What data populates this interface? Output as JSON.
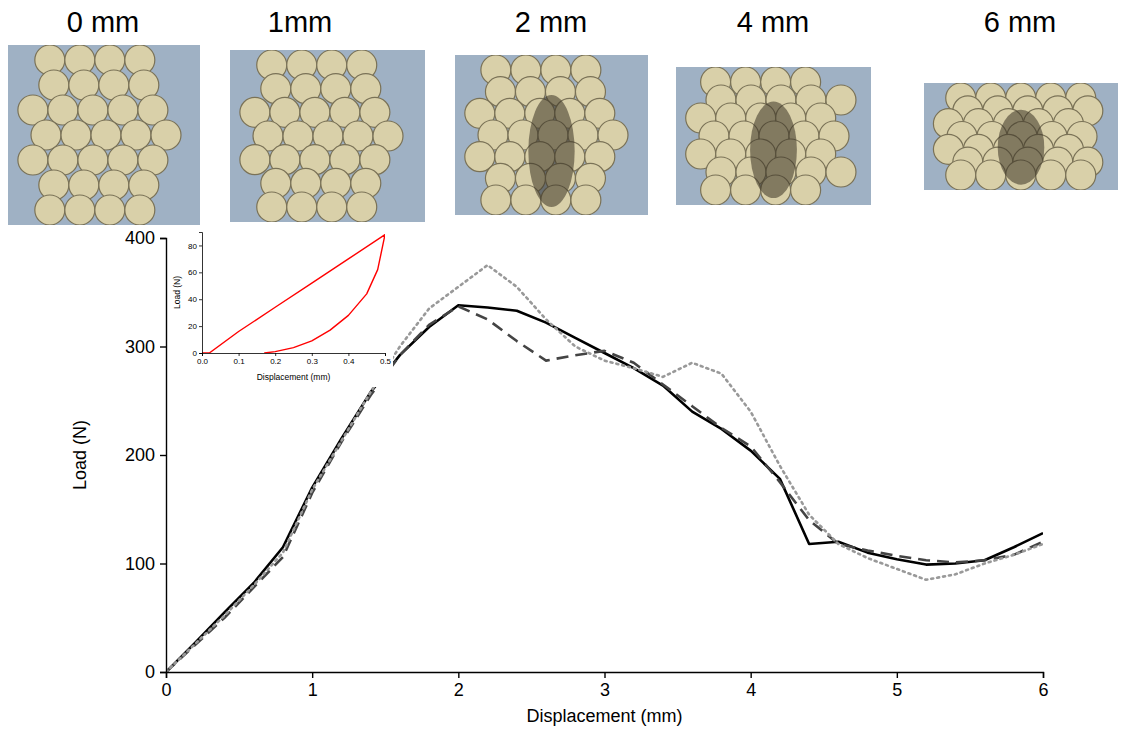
{
  "photos": {
    "labels": [
      "0 mm",
      "1mm",
      "2 mm",
      "4 mm",
      "6 mm"
    ]
  },
  "chart_data": [
    {
      "type": "line",
      "x_label": "Displacement (mm)",
      "y_label": "Load (N)",
      "x": [
        0,
        0.2,
        0.4,
        0.6,
        0.8,
        1.0,
        1.2,
        1.4,
        1.6,
        1.8,
        2.0,
        2.2,
        2.4,
        2.6,
        2.8,
        3.0,
        3.2,
        3.4,
        3.6,
        3.8,
        4.0,
        4.2,
        4.4,
        4.6,
        4.8,
        5.0,
        5.2,
        5.4,
        5.6,
        5.8,
        6.0
      ],
      "series": [
        {
          "color": "#000000",
          "line_style": "solid",
          "values": [
            0,
            27,
            55,
            82,
            115,
            170,
            215,
            258,
            292,
            318,
            338,
            336,
            333,
            322,
            308,
            294,
            280,
            264,
            240,
            224,
            204,
            178,
            118,
            120,
            110,
            104,
            99,
            100,
            103,
            115,
            128
          ]
        },
        {
          "color": "#444444",
          "line_style": "dashed",
          "values": [
            0,
            25,
            50,
            78,
            106,
            165,
            212,
            255,
            292,
            320,
            337,
            325,
            305,
            287,
            292,
            296,
            285,
            265,
            245,
            225,
            208,
            175,
            140,
            118,
            112,
            107,
            103,
            101,
            103,
            108,
            120
          ]
        },
        {
          "color": "#999999",
          "line_style": "dotted",
          "values": [
            0,
            26,
            52,
            80,
            110,
            168,
            213,
            258,
            300,
            335,
            355,
            375,
            355,
            325,
            300,
            287,
            280,
            272,
            285,
            275,
            240,
            190,
            145,
            118,
            105,
            95,
            85,
            90,
            100,
            108,
            118
          ]
        }
      ],
      "xlim": [
        0,
        6
      ],
      "xticks": [
        0,
        1,
        2,
        3,
        4,
        5,
        6
      ],
      "ylim": [
        0,
        400
      ],
      "yticks": [
        0,
        100,
        200,
        300,
        400
      ]
    },
    {
      "type": "line",
      "x_label": "Displacement (mm)",
      "y_label": "Load (N)",
      "series": [
        {
          "color": "#ff0000",
          "line_style": "solid",
          "x": [
            0,
            0.02,
            0.1,
            0.2,
            0.3,
            0.4,
            0.5,
            0.48,
            0.45,
            0.4,
            0.35,
            0.3,
            0.25,
            0.2,
            0.17
          ],
          "values": [
            0,
            0,
            16,
            34,
            52,
            70,
            88,
            62,
            44,
            28,
            17,
            9,
            4,
            1,
            0
          ]
        }
      ],
      "xlim": [
        0,
        0.5
      ],
      "xticks": [
        {
          "value": 0,
          "label": "0.0"
        },
        {
          "value": 0.1,
          "label": "0.1"
        },
        {
          "value": 0.2,
          "label": "0.2"
        },
        {
          "value": 0.3,
          "label": "0.3"
        },
        {
          "value": 0.4,
          "label": "0.4"
        },
        {
          "value": 0.5,
          "label": "0.5"
        }
      ],
      "ylim": [
        0,
        90
      ],
      "yticks": [
        0,
        20,
        40,
        60,
        80
      ]
    }
  ]
}
